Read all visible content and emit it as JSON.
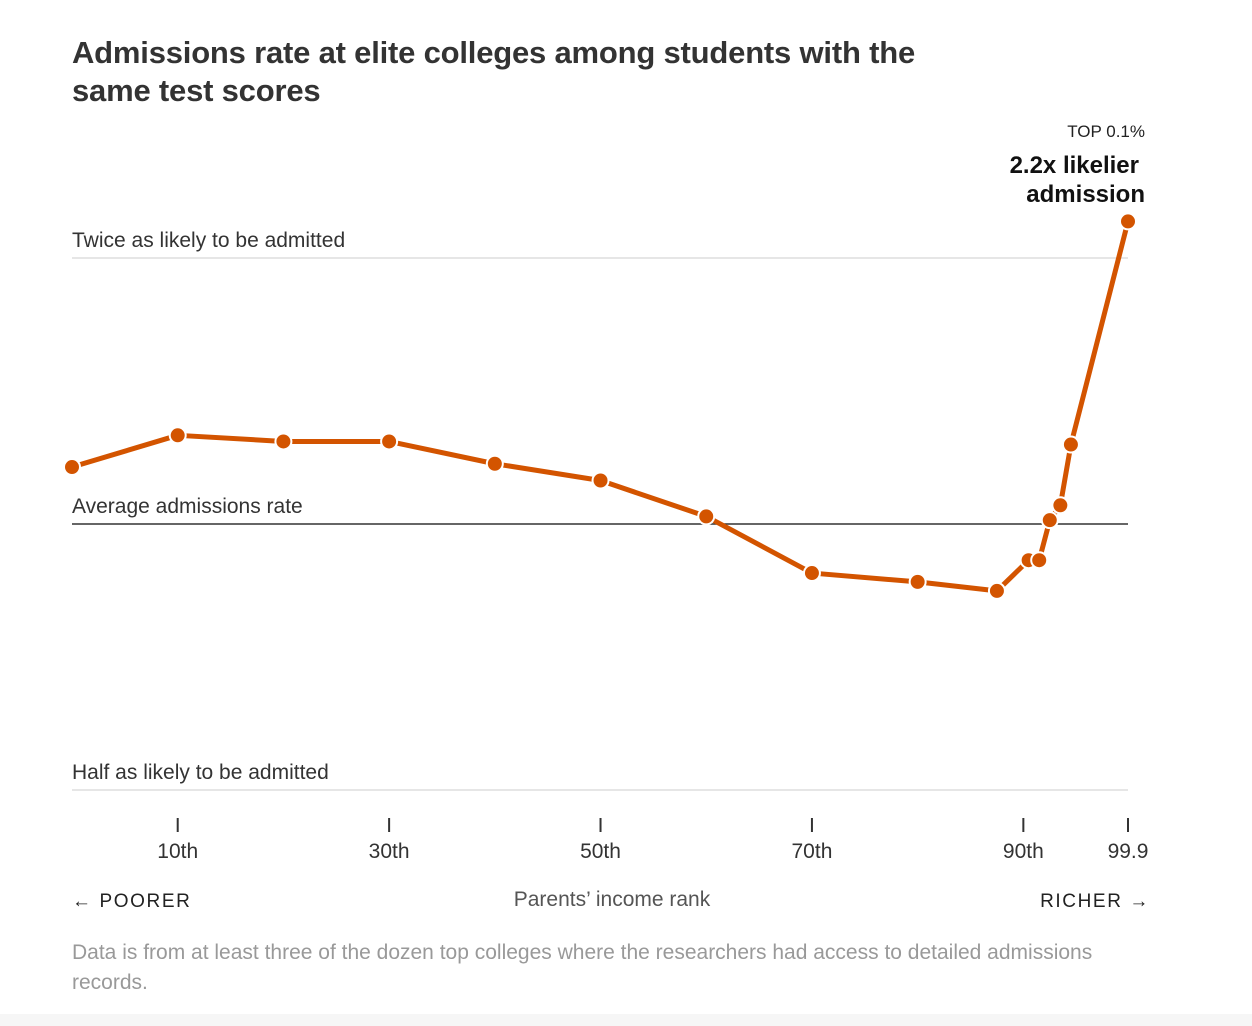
{
  "chart_data": {
    "type": "line",
    "title": "Admissions rate at elite colleges among students with the same test scores",
    "xlabel": "Parents’ income rank",
    "x_left_label": "← POORER",
    "x_right_label": "RICHER →",
    "x_ticks": [
      {
        "value": 10,
        "label": "10th"
      },
      {
        "value": 30,
        "label": "30th"
      },
      {
        "value": 50,
        "label": "50th"
      },
      {
        "value": 70,
        "label": "70th"
      },
      {
        "value": 90,
        "label": "90th"
      },
      {
        "value": 99.9,
        "label": "99.9"
      }
    ],
    "xlim": [
      0,
      99.9
    ],
    "y_scale": "log2",
    "ylim": [
      0.5,
      2
    ],
    "reference_lines": [
      {
        "value": 2,
        "label": "Twice as likely to be admitted",
        "color": "#dddddd"
      },
      {
        "value": 1,
        "label": "Average admissions rate",
        "color": "#333333"
      },
      {
        "value": 0.5,
        "label": "Half as likely to be admitted",
        "color": "#dddddd"
      }
    ],
    "series": [
      {
        "color": "#d35400",
        "points": [
          {
            "x": 0,
            "y": 1.16
          },
          {
            "x": 10,
            "y": 1.26
          },
          {
            "x": 20,
            "y": 1.24
          },
          {
            "x": 30,
            "y": 1.24
          },
          {
            "x": 40,
            "y": 1.17
          },
          {
            "x": 50,
            "y": 1.12
          },
          {
            "x": 60,
            "y": 1.02
          },
          {
            "x": 70,
            "y": 0.88
          },
          {
            "x": 80,
            "y": 0.86
          },
          {
            "x": 87.5,
            "y": 0.84
          },
          {
            "x": 90.5,
            "y": 0.91
          },
          {
            "x": 91.5,
            "y": 0.91
          },
          {
            "x": 92.5,
            "y": 1.01
          },
          {
            "x": 93.5,
            "y": 1.05
          },
          {
            "x": 94.5,
            "y": 1.23
          },
          {
            "x": 99.9,
            "y": 2.2
          }
        ]
      }
    ],
    "annotation": {
      "kicker": "TOP 0.1%",
      "line1": "2.2x likelier",
      "line2": "admission"
    },
    "footnote": "Data is from at least three of the dozen top colleges where the researchers had access to detailed admissions records."
  }
}
